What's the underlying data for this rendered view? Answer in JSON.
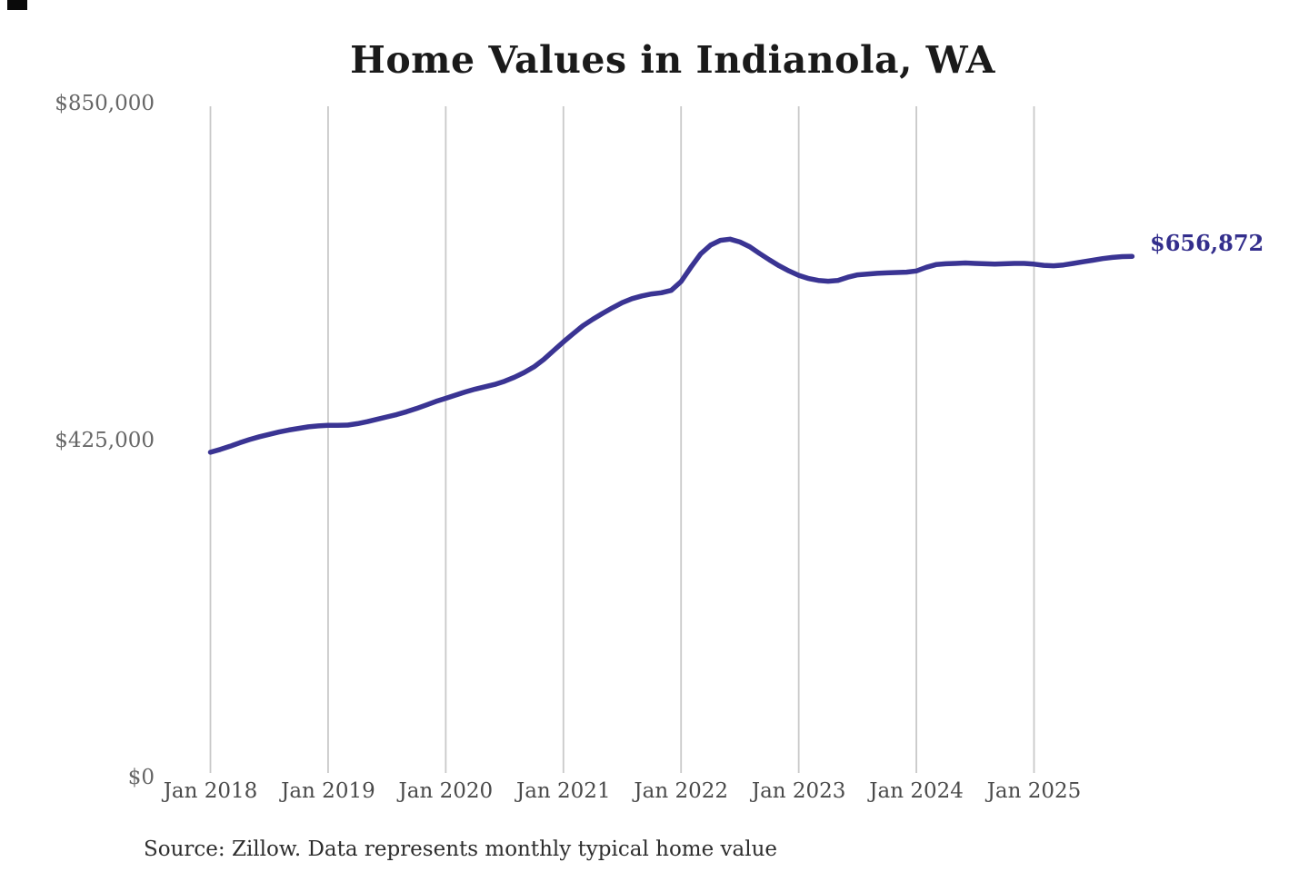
{
  "title": "Home Values in Indianola, WA",
  "end_label": "$656,872",
  "source_note": "Source: Zillow. Data represents monthly typical home value",
  "colors": {
    "line": "#3a3493",
    "end_label_text": "#332e8c",
    "gridline": "#c9c9c9",
    "title_text": "#1a1a1a",
    "y_tick_text": "#666666",
    "x_tick_text": "#4a4a4a",
    "source_text": "#2e2e2e",
    "background": "#ffffff"
  },
  "chart_data": {
    "type": "line",
    "title": "Home Values in Indianola, WA",
    "unit": "USD",
    "frequency": "monthly",
    "x_start": "Jan 2018",
    "x_end": "Nov 2025",
    "grid": "vertical-only",
    "legend": "none",
    "ylim": [
      0,
      850000
    ],
    "y_ticks": [
      {
        "label": "$0",
        "value": 0
      },
      {
        "label": "$425,000",
        "value": 425000
      },
      {
        "label": "$850,000",
        "value": 850000
      }
    ],
    "x_ticks": [
      {
        "label": "Jan 2018",
        "month_index": 0
      },
      {
        "label": "Jan 2019",
        "month_index": 12
      },
      {
        "label": "Jan 2020",
        "month_index": 24
      },
      {
        "label": "Jan 2021",
        "month_index": 36
      },
      {
        "label": "Jan 2022",
        "month_index": 48
      },
      {
        "label": "Jan 2023",
        "month_index": 60
      },
      {
        "label": "Jan 2024",
        "month_index": 72
      },
      {
        "label": "Jan 2025",
        "month_index": 84
      },
      {
        "label": "",
        "month_index": 96
      }
    ],
    "final_value": 656872,
    "series": [
      {
        "name": "Typical home value",
        "values": [
          410000,
          413500,
          417500,
          422000,
          426000,
          429500,
          432500,
          435500,
          438000,
          440000,
          442000,
          443200,
          444000,
          443800,
          444200,
          446000,
          448500,
          451500,
          454500,
          457500,
          461000,
          465000,
          469500,
          474000,
          478000,
          482000,
          486000,
          489500,
          492500,
          495500,
          499500,
          504500,
          510500,
          517500,
          527000,
          538000,
          549000,
          559500,
          569500,
          577500,
          585000,
          592000,
          598500,
          603500,
          607000,
          609500,
          611000,
          614000,
          625000,
          643000,
          660000,
          671000,
          677000,
          678500,
          675000,
          669000,
          660500,
          652500,
          645000,
          638500,
          633000,
          629000,
          626500,
          625500,
          626500,
          630500,
          633500,
          634500,
          635500,
          636000,
          636500,
          637000,
          638500,
          643000,
          646500,
          647500,
          648000,
          648500,
          648000,
          647500,
          647000,
          647500,
          648000,
          648000,
          647000,
          645500,
          645000,
          646000,
          648000,
          650000,
          652000,
          654000,
          655500,
          656500,
          656872
        ]
      }
    ]
  }
}
